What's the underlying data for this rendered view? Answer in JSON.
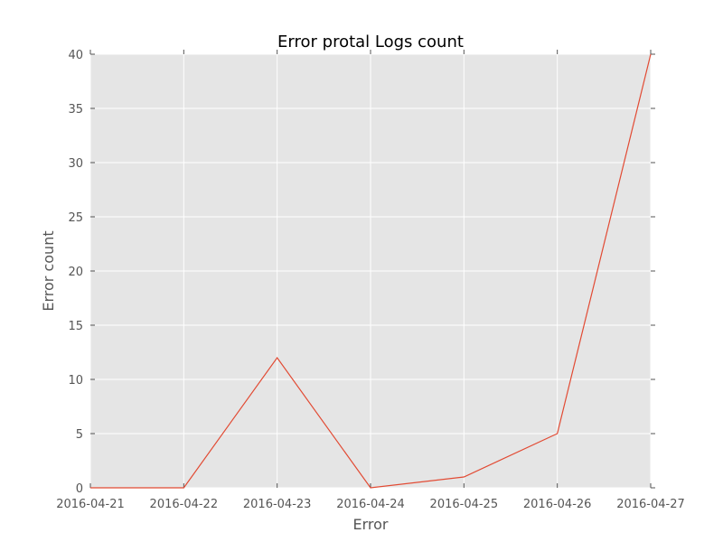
{
  "chart_data": {
    "type": "line",
    "title": "Error protal Logs count",
    "xlabel": "Error",
    "ylabel": "Error count",
    "x": [
      "2016-04-21",
      "2016-04-22",
      "2016-04-23",
      "2016-04-24",
      "2016-04-25",
      "2016-04-26",
      "2016-04-27"
    ],
    "series": [
      {
        "values": [
          0,
          0,
          12,
          0,
          1,
          5,
          40
        ]
      }
    ],
    "ylim": [
      0,
      40
    ],
    "yticks": [
      0,
      5,
      10,
      15,
      20,
      25,
      30,
      35,
      40
    ],
    "grid": true,
    "legend": "none"
  },
  "colors": {
    "plot_background": "#e5e5e5",
    "gridline": "#ffffff",
    "line": "#e24a33",
    "tick_text": "#555555",
    "title_text": "#000000"
  }
}
